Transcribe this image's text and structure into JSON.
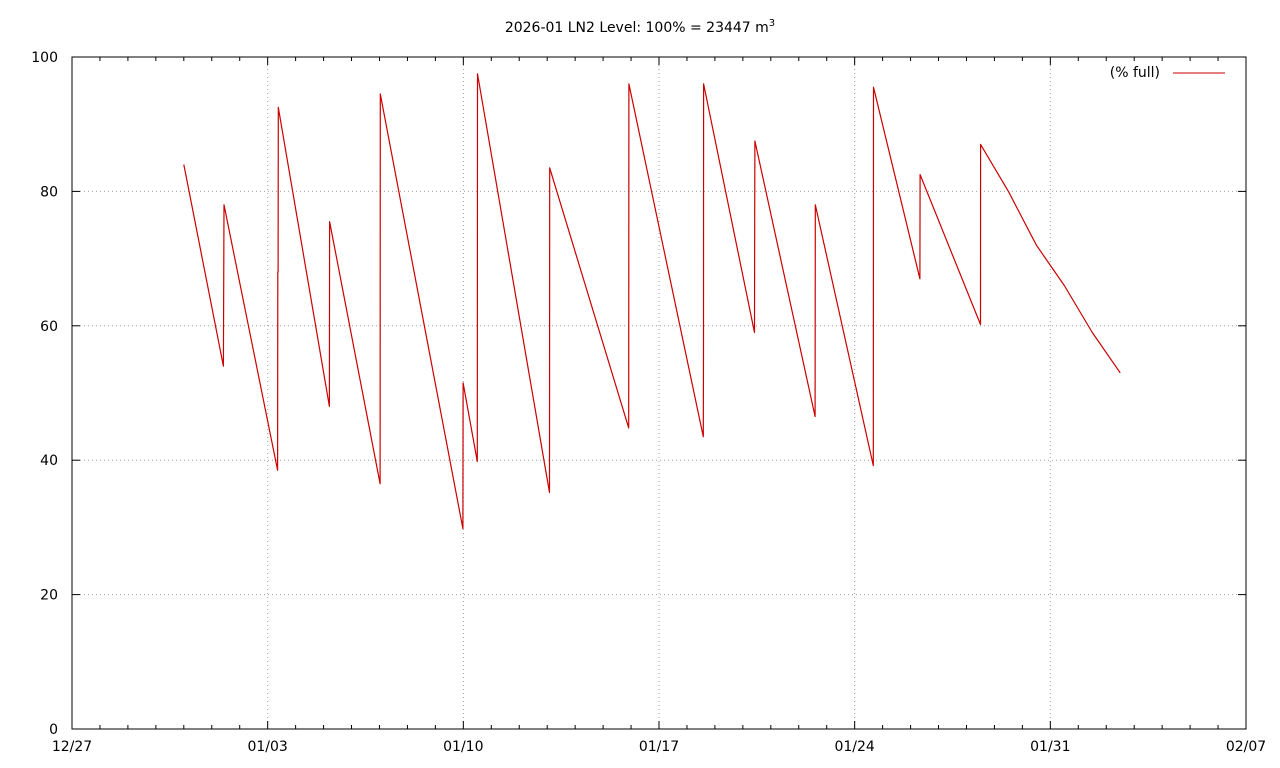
{
  "chart_data": {
    "type": "line",
    "title_main": "2026-01 LN2 Level: 100% = 23447 m",
    "title_sup": "3",
    "x_axis": {
      "start": "2025-12-27",
      "end": "2026-02-07",
      "ticks": [
        {
          "date": "2025-12-27",
          "label": "12/27"
        },
        {
          "date": "2026-01-03",
          "label": "01/03"
        },
        {
          "date": "2026-01-10",
          "label": "01/10"
        },
        {
          "date": "2026-01-17",
          "label": "01/17"
        },
        {
          "date": "2026-01-24",
          "label": "01/24"
        },
        {
          "date": "2026-01-31",
          "label": "01/31"
        },
        {
          "date": "2026-02-07",
          "label": "02/07"
        }
      ]
    },
    "y_axis": {
      "ylim": [
        0,
        100
      ],
      "ticks": [
        {
          "value": 0,
          "label": "0"
        },
        {
          "value": 20,
          "label": "20"
        },
        {
          "value": 40,
          "label": "40"
        },
        {
          "value": 60,
          "label": "60"
        },
        {
          "value": 80,
          "label": "80"
        },
        {
          "value": 100,
          "label": "100"
        }
      ]
    },
    "grid": true,
    "legend": {
      "placement": "top-right"
    },
    "series": [
      {
        "name": "(% full)",
        "color": "#cc0000",
        "points": [
          [
            "2025-12-31 00:00",
            84.0
          ],
          [
            "2026-01-01 10:00",
            54.0
          ],
          [
            "2026-01-01 10:30",
            78.0
          ],
          [
            "2026-01-03 08:30",
            38.5
          ],
          [
            "2026-01-03 08:40",
            68.0
          ],
          [
            "2026-01-03 09:00",
            68.0
          ],
          [
            "2026-01-03 09:10",
            92.5
          ],
          [
            "2026-01-05 05:00",
            48.0
          ],
          [
            "2026-01-05 05:10",
            75.5
          ],
          [
            "2026-01-07 00:30",
            36.5
          ],
          [
            "2026-01-07 00:40",
            94.5
          ],
          [
            "2026-01-09 23:40",
            29.8
          ],
          [
            "2026-01-09 23:50",
            51.5
          ],
          [
            "2026-01-10 12:00",
            39.8
          ],
          [
            "2026-01-10 12:10",
            97.5
          ],
          [
            "2026-01-13 02:00",
            35.2
          ],
          [
            "2026-01-13 02:10",
            83.5
          ],
          [
            "2026-01-15 22:00",
            44.8
          ],
          [
            "2026-01-15 22:10",
            96.0
          ],
          [
            "2026-01-18 14:00",
            43.5
          ],
          [
            "2026-01-18 14:10",
            57.0
          ],
          [
            "2026-01-18 14:20",
            96.0
          ],
          [
            "2026-01-20 10:00",
            59.0
          ],
          [
            "2026-01-20 10:10",
            76.0
          ],
          [
            "2026-01-20 10:20",
            87.5
          ],
          [
            "2026-01-22 14:00",
            46.5
          ],
          [
            "2026-01-22 14:10",
            78.0
          ],
          [
            "2026-01-24 16:00",
            39.2
          ],
          [
            "2026-01-24 16:10",
            95.5
          ],
          [
            "2026-01-26 08:00",
            67.0
          ],
          [
            "2026-01-26 08:10",
            82.5
          ],
          [
            "2026-01-28 12:00",
            60.2
          ],
          [
            "2026-01-28 12:10",
            87.0
          ],
          [
            "2026-01-29 12:00",
            80.0
          ],
          [
            "2026-01-30 12:00",
            72.0
          ],
          [
            "2026-01-31 12:00",
            66.0
          ],
          [
            "2026-02-01 12:00",
            59.0
          ],
          [
            "2026-02-02 12:00",
            53.0
          ]
        ]
      }
    ]
  }
}
